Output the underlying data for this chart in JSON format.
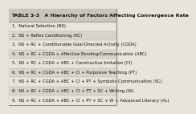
{
  "title": "TABLE 3-3   A Hierarchy of Factors Affecting Convergence Rate",
  "rows": [
    "1.  Natural Selection (NS)",
    "2.  NS + Reflex Conditioning (RC)",
    "3.  NS + RC + Conditionable Goal-Directed Activity (CGDA)",
    "4.  NS + RC + CGDA + Affective Bonding/Communication (ABC)",
    "5.  NS + RC + CGDA + ABC + Constructive Imitation (CI)",
    "6.  NS + RC + CGDA + ABC + CI + Purposive Teaching (PT)",
    "7.  NS + RC + CGDA + ABC + CI + PT + Symbolic Communication (SC)",
    "8.  NS + RC + CGDA + ABC + CI + PT + SC + Writing (W)",
    "9.  NS + RC + CGDA + ABC + CI + PT + SC + W + Advanced Literacy (AL)"
  ],
  "bg_color": "#e8e4dc",
  "header_bg": "#c8c4bc",
  "border_color": "#888880",
  "title_fontsize": 4.5,
  "row_fontsize": 3.8,
  "text_color": "#111111"
}
